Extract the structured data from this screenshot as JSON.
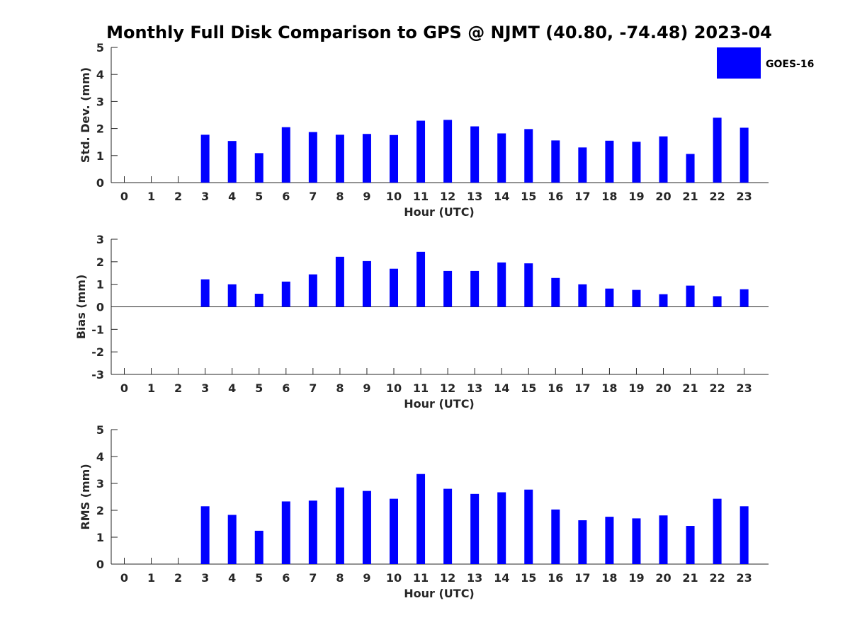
{
  "figure": {
    "title": "Monthly Full Disk Comparison to GPS @ NJMT (40.80, -74.48) 2023-04",
    "legend": {
      "label": "GOES-16",
      "color": "#0000ff",
      "placement": "top-right"
    }
  },
  "chart_data": [
    {
      "type": "bar",
      "categories": [
        "0",
        "1",
        "2",
        "3",
        "4",
        "5",
        "6",
        "7",
        "8",
        "9",
        "10",
        "11",
        "12",
        "13",
        "14",
        "15",
        "16",
        "17",
        "18",
        "19",
        "20",
        "21",
        "22",
        "23"
      ],
      "series": [
        {
          "name": "GOES-16",
          "values": [
            null,
            null,
            null,
            1.77,
            1.54,
            1.09,
            2.05,
            1.87,
            1.77,
            1.8,
            1.76,
            2.29,
            2.32,
            2.08,
            1.82,
            1.98,
            1.56,
            1.3,
            1.55,
            1.51,
            1.71,
            1.06,
            2.4,
            2.03
          ]
        }
      ],
      "xlabel": "Hour (UTC)",
      "ylabel": "Std. Dev. (mm)",
      "ylim": [
        0,
        5
      ],
      "yticks": [
        0,
        1,
        2,
        3,
        4,
        5
      ],
      "grid": false
    },
    {
      "type": "bar",
      "categories": [
        "0",
        "1",
        "2",
        "3",
        "4",
        "5",
        "6",
        "7",
        "8",
        "9",
        "10",
        "11",
        "12",
        "13",
        "14",
        "15",
        "16",
        "17",
        "18",
        "19",
        "20",
        "21",
        "22",
        "23"
      ],
      "series": [
        {
          "name": "GOES-16",
          "values": [
            null,
            null,
            null,
            1.22,
            1.0,
            0.58,
            1.12,
            1.44,
            2.22,
            2.03,
            1.69,
            2.44,
            1.59,
            1.59,
            1.97,
            1.93,
            1.28,
            1.0,
            0.81,
            0.75,
            0.56,
            0.94,
            0.47,
            0.78
          ]
        }
      ],
      "xlabel": "Hour (UTC)",
      "ylabel": "Bias (mm)",
      "ylim": [
        -3,
        3
      ],
      "yticks": [
        -3,
        -2,
        -1,
        0,
        1,
        2,
        3
      ],
      "grid": false
    },
    {
      "type": "bar",
      "categories": [
        "0",
        "1",
        "2",
        "3",
        "4",
        "5",
        "6",
        "7",
        "8",
        "9",
        "10",
        "11",
        "12",
        "13",
        "14",
        "15",
        "16",
        "17",
        "18",
        "19",
        "20",
        "21",
        "22",
        "23"
      ],
      "series": [
        {
          "name": "GOES-16",
          "values": [
            null,
            null,
            null,
            2.15,
            1.83,
            1.24,
            2.33,
            2.36,
            2.85,
            2.72,
            2.43,
            3.35,
            2.8,
            2.61,
            2.67,
            2.77,
            2.03,
            1.63,
            1.76,
            1.7,
            1.81,
            1.42,
            2.43,
            2.15
          ]
        }
      ],
      "xlabel": "Hour (UTC)",
      "ylabel": "RMS (mm)",
      "ylim": [
        0,
        5
      ],
      "yticks": [
        0,
        1,
        2,
        3,
        4,
        5
      ],
      "grid": false
    }
  ]
}
